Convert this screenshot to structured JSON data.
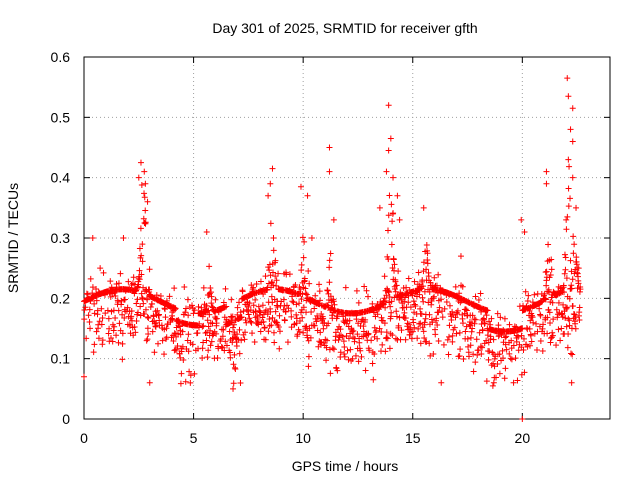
{
  "chart_data": {
    "type": "scatter",
    "title": "Day 301 of 2025, SRMTID for receiver gfth",
    "xlabel": "GPS time / hours",
    "ylabel": "SRMTID / TECUs",
    "xlim": [
      0,
      24
    ],
    "ylim": [
      0,
      0.6
    ],
    "xticks": [
      "0",
      "5",
      "10",
      "15",
      "20"
    ],
    "yticks": [
      "0",
      "0.1",
      "0.2",
      "0.3",
      "0.4",
      "0.5",
      "0.6"
    ],
    "grid": true,
    "marker": "plus",
    "color": "#ff0000",
    "series": [
      {
        "name": "SRMTID",
        "sampling": "approximately every 0.01 h from 0.0 to 22.65 h (estimated)",
        "baseline_range": [
          0.08,
          0.3
        ],
        "typical_level": 0.16,
        "points": [
          {
            "x": 2.6,
            "y": 0.425
          },
          {
            "x": 2.75,
            "y": 0.41
          },
          {
            "x": 2.8,
            "y": 0.39
          },
          {
            "x": 2.5,
            "y": 0.4
          },
          {
            "x": 2.9,
            "y": 0.36
          },
          {
            "x": 3.0,
            "y": 0.06
          },
          {
            "x": 8.6,
            "y": 0.415
          },
          {
            "x": 8.5,
            "y": 0.39
          },
          {
            "x": 8.4,
            "y": 0.37
          },
          {
            "x": 9.9,
            "y": 0.385
          },
          {
            "x": 10.2,
            "y": 0.37
          },
          {
            "x": 10.4,
            "y": 0.3
          },
          {
            "x": 11.2,
            "y": 0.45
          },
          {
            "x": 11.2,
            "y": 0.41
          },
          {
            "x": 11.4,
            "y": 0.33
          },
          {
            "x": 13.9,
            "y": 0.52
          },
          {
            "x": 14.0,
            "y": 0.465
          },
          {
            "x": 13.9,
            "y": 0.445
          },
          {
            "x": 13.8,
            "y": 0.41
          },
          {
            "x": 14.1,
            "y": 0.4
          },
          {
            "x": 14.3,
            "y": 0.37
          },
          {
            "x": 14.4,
            "y": 0.33
          },
          {
            "x": 13.5,
            "y": 0.35
          },
          {
            "x": 13.2,
            "y": 0.065
          },
          {
            "x": 6.8,
            "y": 0.05
          },
          {
            "x": 16.3,
            "y": 0.06
          },
          {
            "x": 18.7,
            "y": 0.06
          },
          {
            "x": 19.6,
            "y": 0.06
          },
          {
            "x": 20.0,
            "y": 0.0
          },
          {
            "x": 19.95,
            "y": 0.33
          },
          {
            "x": 20.1,
            "y": 0.31
          },
          {
            "x": 21.1,
            "y": 0.41
          },
          {
            "x": 21.1,
            "y": 0.39
          },
          {
            "x": 22.05,
            "y": 0.565
          },
          {
            "x": 22.1,
            "y": 0.535
          },
          {
            "x": 22.3,
            "y": 0.515
          },
          {
            "x": 22.2,
            "y": 0.48
          },
          {
            "x": 22.3,
            "y": 0.46
          },
          {
            "x": 22.1,
            "y": 0.43
          },
          {
            "x": 22.3,
            "y": 0.4
          },
          {
            "x": 22.45,
            "y": 0.35
          },
          {
            "x": 22.0,
            "y": 0.33
          },
          {
            "x": 22.25,
            "y": 0.06
          },
          {
            "x": 0.0,
            "y": 0.07
          },
          {
            "x": 0.4,
            "y": 0.3
          },
          {
            "x": 1.8,
            "y": 0.3
          },
          {
            "x": 5.6,
            "y": 0.31
          },
          {
            "x": 15.5,
            "y": 0.35
          },
          {
            "x": 17.2,
            "y": 0.27
          }
        ]
      }
    ]
  }
}
